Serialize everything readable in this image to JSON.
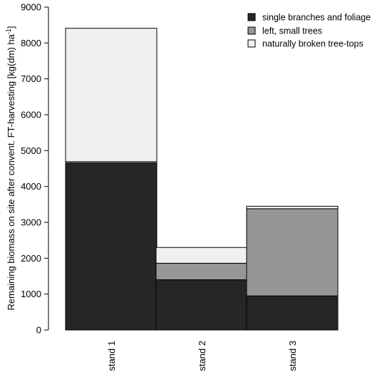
{
  "chart_data": {
    "type": "bar",
    "stacked": true,
    "categories": [
      "stand 1",
      "stand 2",
      "stand 3"
    ],
    "series": [
      {
        "name": "single branches and foliage",
        "color": "#262626",
        "values": [
          4650,
          1400,
          950
        ]
      },
      {
        "name": "left, small trees",
        "color": "#969696",
        "values": [
          40,
          460,
          2430
        ]
      },
      {
        "name": "naturally broken tree-tops",
        "color": "#f0f0f0",
        "values": [
          3720,
          440,
          70
        ]
      }
    ],
    "title": "",
    "xlabel": "",
    "ylabel": {
      "main": "Remaining biomass on site after convent. FT-harvesting [kg(dm) ha",
      "superscript": "-1",
      "suffix": "]"
    },
    "ylim": [
      0,
      9000
    ],
    "yticks": [
      "0",
      "1000",
      "2000",
      "3000",
      "4000",
      "5000",
      "6000",
      "7000",
      "8000",
      "9000"
    ],
    "grid": false,
    "legend_position": "top-right"
  }
}
